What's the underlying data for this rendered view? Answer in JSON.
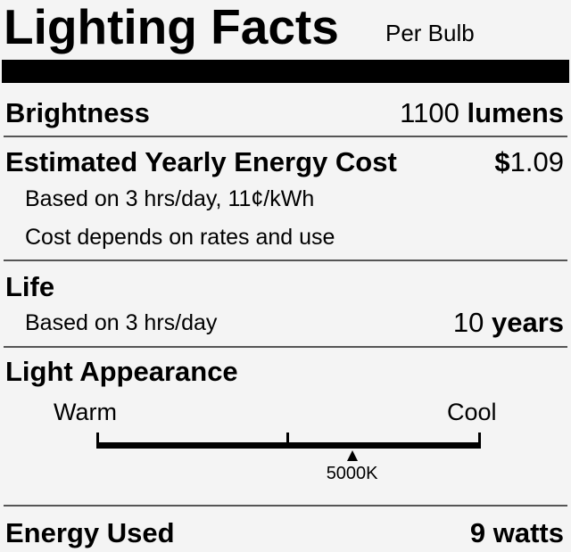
{
  "header": {
    "title": "Lighting Facts",
    "subtitle": "Per Bulb"
  },
  "brightness": {
    "label": "Brightness",
    "value": "1100",
    "unit": "lumens"
  },
  "cost": {
    "label": "Estimated Yearly Energy Cost",
    "currency": "$",
    "value": "1.09",
    "note1": "Based on 3 hrs/day, 11¢/kWh",
    "note2": "Cost depends on rates and use"
  },
  "life": {
    "label": "Life",
    "note": "Based on 3 hrs/day",
    "value": "10",
    "unit": "years"
  },
  "appearance": {
    "label": "Light Appearance",
    "warm": "Warm",
    "cool": "Cool",
    "marker_label": "5000K",
    "marker_position_fraction": 0.665
  },
  "energy": {
    "label": "Energy Used",
    "value": "9 watts"
  }
}
